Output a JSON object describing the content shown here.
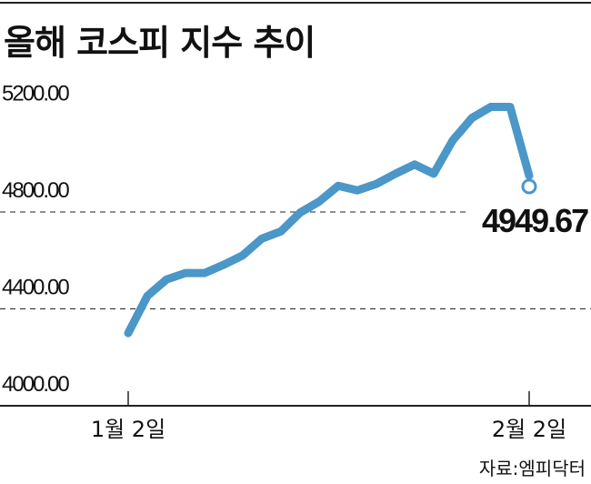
{
  "title": "올해 코스피 지수 추이",
  "source": "자료:엠피닥터",
  "chart_data": {
    "type": "line",
    "title": "올해 코스피 지수 추이",
    "xlabel": "",
    "ylabel": "",
    "x_tick_labels": [
      "1월 2일",
      "2월 2일"
    ],
    "y_tick_labels": [
      "5200.00",
      "4800.00",
      "4400.00",
      "4000.00"
    ],
    "y_ticks": [
      5200,
      4800,
      4400,
      4000
    ],
    "ylim": [
      4000,
      5250
    ],
    "grid": "dashed lines at 4400 and 4800",
    "line_color": "#4a97c8",
    "values": [
      4300,
      4453,
      4521,
      4548,
      4548,
      4582,
      4621,
      4690,
      4720,
      4797,
      4843,
      4908,
      4889,
      4916,
      4958,
      4996,
      4958,
      5096,
      5188,
      5234,
      5234,
      4949.67
    ],
    "end_label": "4949.67"
  }
}
